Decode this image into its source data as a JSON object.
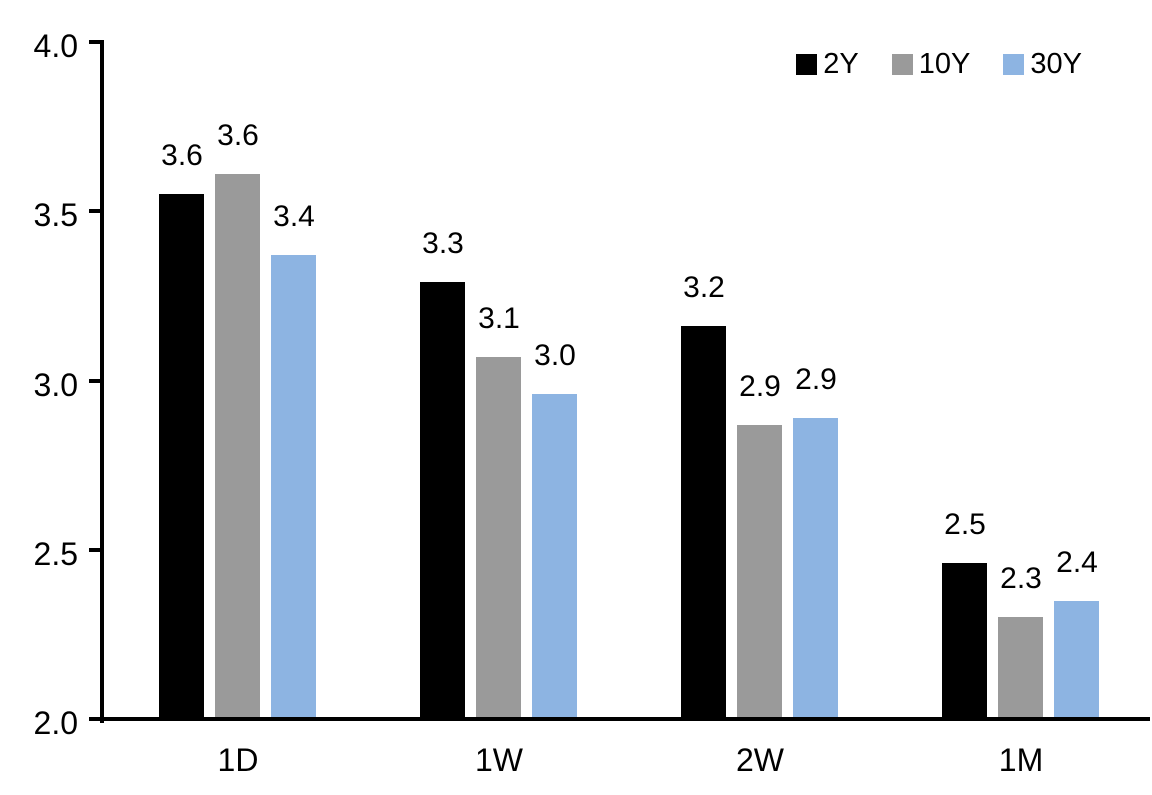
{
  "chart_data": {
    "type": "bar",
    "title": "",
    "xlabel": "",
    "ylabel": "",
    "categories": [
      "1D",
      "1W",
      "2W",
      "1M"
    ],
    "series": [
      {
        "name": "2Y",
        "color": "#000000",
        "values": [
          3.55,
          3.29,
          3.16,
          2.46
        ],
        "data_labels": [
          "3.6",
          "3.3",
          "3.2",
          "2.5"
        ]
      },
      {
        "name": "10Y",
        "color": "#9A9A9A",
        "values": [
          3.61,
          3.07,
          2.87,
          2.3
        ],
        "data_labels": [
          "3.6",
          "3.1",
          "2.9",
          "2.3"
        ]
      },
      {
        "name": "30Y",
        "color": "#8DB4E2",
        "values": [
          3.37,
          2.96,
          2.89,
          2.35
        ],
        "data_labels": [
          "3.4",
          "3.0",
          "2.9",
          "2.4"
        ]
      }
    ],
    "ylim": [
      2.0,
      4.0
    ],
    "yticks": [
      {
        "value": 4.0,
        "label": "4.0"
      },
      {
        "value": 3.5,
        "label": "3.5"
      },
      {
        "value": 3.0,
        "label": "3.0"
      },
      {
        "value": 2.5,
        "label": "2.5"
      },
      {
        "value": 2.0,
        "label": "2.0"
      }
    ],
    "legend": {
      "position": "top-right",
      "entries": [
        "2Y",
        "10Y",
        "30Y"
      ]
    },
    "grid": false,
    "axis_color": "#000000",
    "background": "#FFFFFF"
  }
}
